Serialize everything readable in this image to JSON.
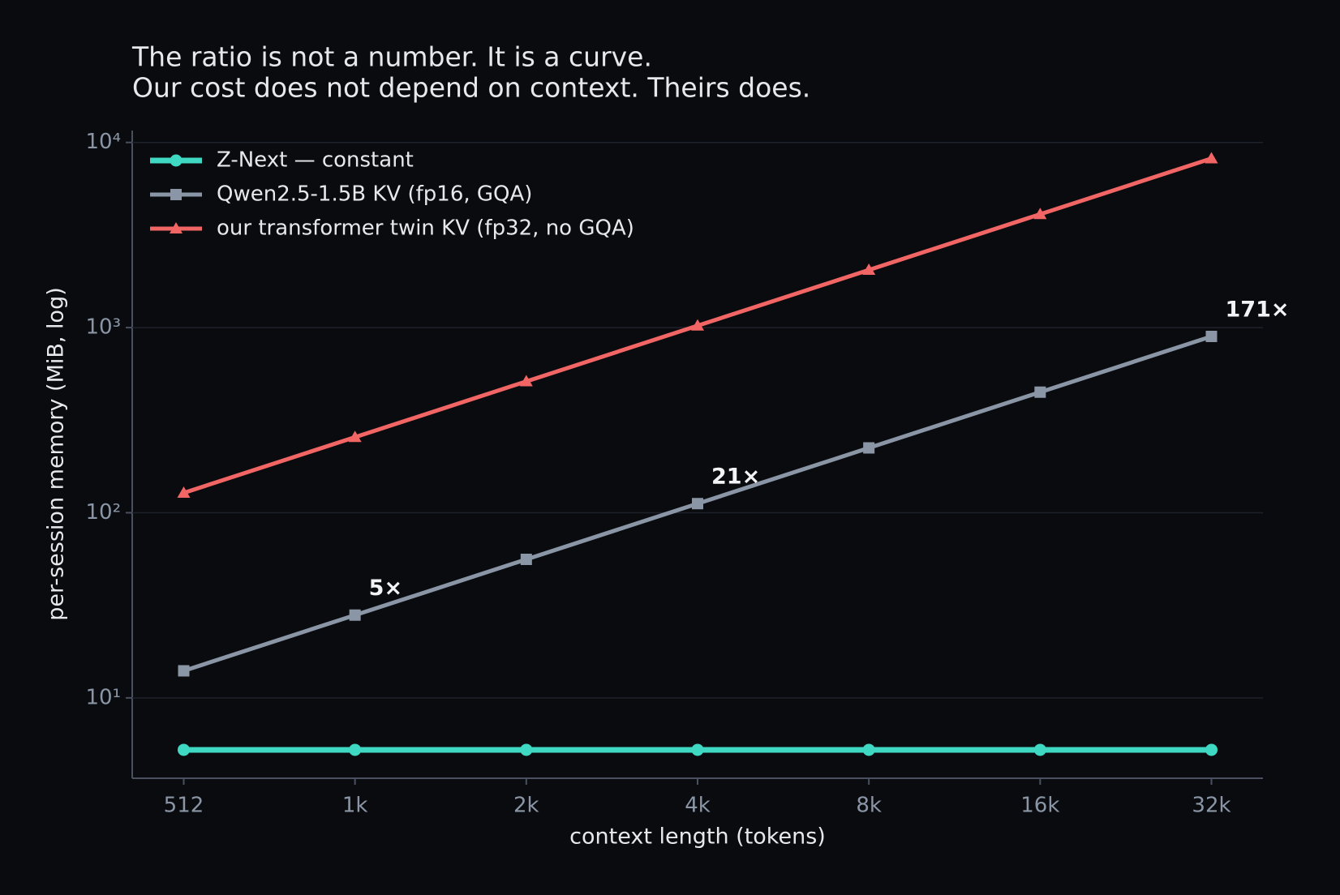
{
  "chart_data": {
    "type": "line",
    "title": [
      "The ratio is not a number. It is a curve.",
      "Our cost does not depend on context. Theirs does."
    ],
    "x_label": "context length (tokens)",
    "y_label": "per-session memory (MiB, log)",
    "categories": [
      "512",
      "1k",
      "2k",
      "4k",
      "8k",
      "16k",
      "32k"
    ],
    "y_scale": "log",
    "ylim": [
      3.68,
      11600
    ],
    "yticks": [
      {
        "value": 10,
        "label": "10¹"
      },
      {
        "value": 100,
        "label": "10²"
      },
      {
        "value": 1000,
        "label": "10³"
      },
      {
        "value": 10000,
        "label": "10⁴"
      }
    ],
    "grid": true,
    "legend": "upper left",
    "series": [
      {
        "name": "Z-Next — constant",
        "color": "#3fd8c2",
        "marker": "circle",
        "values": [
          5.24,
          5.24,
          5.24,
          5.24,
          5.24,
          5.24,
          5.24
        ]
      },
      {
        "name": "Qwen2.5-1.5B KV (fp16, GQA)",
        "color": "#8a96a6",
        "marker": "square",
        "values": [
          14,
          28,
          56,
          112,
          224,
          448,
          896
        ]
      },
      {
        "name": "our transformer twin KV (fp32, no GQA)",
        "color": "#f26565",
        "marker": "triangle",
        "values": [
          128,
          256,
          512,
          1024,
          2048,
          4096,
          8192
        ]
      }
    ],
    "annotations": [
      {
        "text": "5×",
        "series": 1,
        "x": "1k"
      },
      {
        "text": "21×",
        "series": 1,
        "x": "4k"
      },
      {
        "text": "171×",
        "series": 1,
        "x": "32k"
      }
    ]
  }
}
